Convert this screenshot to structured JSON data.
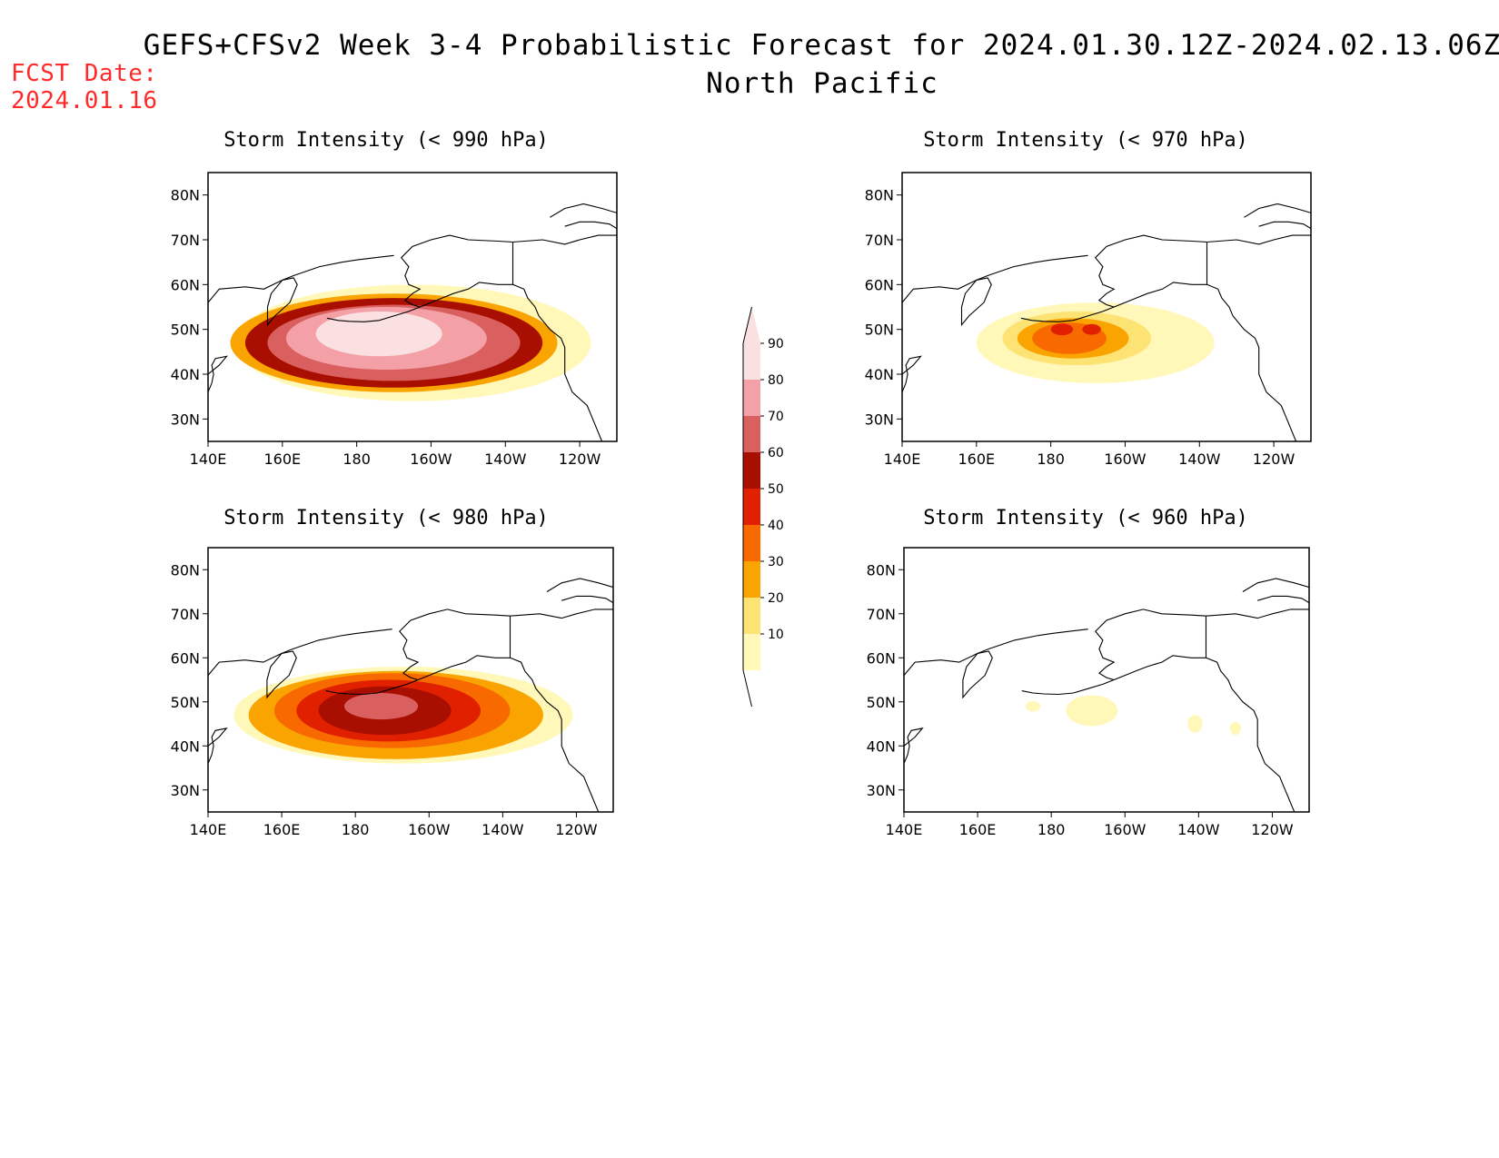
{
  "header": {
    "title": "GEFS+CFSv2 Week 3-4 Probabilistic Forecast for 2024.01.30.12Z-2024.02.13.06Z",
    "subtitle": "North Pacific",
    "fcst_label": "FCST Date:",
    "fcst_date": "2024.01.16"
  },
  "axes": {
    "x_ticks": [
      "140E",
      "160E",
      "180",
      "160W",
      "140W",
      "120W"
    ],
    "y_ticks": [
      "80N",
      "70N",
      "60N",
      "50N",
      "40N",
      "30N"
    ]
  },
  "colorbar": {
    "levels": [
      "10",
      "20",
      "30",
      "40",
      "50",
      "60",
      "70",
      "80",
      "90"
    ],
    "colors": [
      "#fff8b8",
      "#fde274",
      "#f9a400",
      "#f86900",
      "#e12000",
      "#a80f00",
      "#da6060",
      "#f3a0a6",
      "#fbe0e2"
    ]
  },
  "panels": [
    {
      "id": "p990",
      "title": "Storm Intensity (< 990 hPa)",
      "blobs": [
        {
          "lon": 195,
          "lat": 47,
          "rlon": 48,
          "rlat": 13,
          "level": 10
        },
        {
          "lon": 190,
          "lat": 47,
          "rlon": 44,
          "rlat": 11,
          "level": 30
        },
        {
          "lon": 190,
          "lat": 47,
          "rlon": 40,
          "rlat": 10,
          "level": 60
        },
        {
          "lon": 190,
          "lat": 47,
          "rlon": 34,
          "rlat": 8.5,
          "level": 70
        },
        {
          "lon": 188,
          "lat": 48,
          "rlon": 27,
          "rlat": 7,
          "level": 80
        },
        {
          "lon": 186,
          "lat": 49,
          "rlon": 17,
          "rlat": 5,
          "level": 90
        }
      ]
    },
    {
      "id": "p970",
      "title": "Storm Intensity (< 970 hPa)",
      "blobs": [
        {
          "lon": 192,
          "lat": 47,
          "rlon": 32,
          "rlat": 9,
          "level": 10
        },
        {
          "lon": 187,
          "lat": 48,
          "rlon": 20,
          "rlat": 6,
          "level": 20
        },
        {
          "lon": 186,
          "lat": 48,
          "rlon": 15,
          "rlat": 4.5,
          "level": 30
        },
        {
          "lon": 185,
          "lat": 48,
          "rlon": 10,
          "rlat": 3.5,
          "level": 40
        },
        {
          "lon": 183,
          "lat": 50,
          "rlon": 3,
          "rlat": 1.3,
          "level": 50
        },
        {
          "lon": 191,
          "lat": 50,
          "rlon": 2.5,
          "rlat": 1.2,
          "level": 50
        }
      ]
    },
    {
      "id": "p980",
      "title": "Storm Intensity (< 980 hPa)",
      "blobs": [
        {
          "lon": 193,
          "lat": 47,
          "rlon": 46,
          "rlat": 11,
          "level": 10
        },
        {
          "lon": 191,
          "lat": 47,
          "rlon": 40,
          "rlat": 10,
          "level": 30
        },
        {
          "lon": 190,
          "lat": 48,
          "rlon": 32,
          "rlat": 8.5,
          "level": 40
        },
        {
          "lon": 189,
          "lat": 48,
          "rlon": 25,
          "rlat": 7,
          "level": 50
        },
        {
          "lon": 188,
          "lat": 48,
          "rlon": 18,
          "rlat": 5.5,
          "level": 60
        },
        {
          "lon": 187,
          "lat": 49,
          "rlon": 10,
          "rlat": 3,
          "level": 70
        }
      ]
    },
    {
      "id": "p960",
      "title": "Storm Intensity (< 960 hPa)",
      "blobs": [
        {
          "lon": 191,
          "lat": 48,
          "rlon": 7,
          "rlat": 3.5,
          "level": 10
        },
        {
          "lon": 175,
          "lat": 49,
          "rlon": 2,
          "rlat": 1.2,
          "level": 10
        },
        {
          "lon": 219,
          "lat": 45,
          "rlon": 2,
          "rlat": 2,
          "level": 10
        },
        {
          "lon": 230,
          "lat": 44,
          "rlon": 1.5,
          "rlat": 1.5,
          "level": 10
        }
      ]
    }
  ]
}
